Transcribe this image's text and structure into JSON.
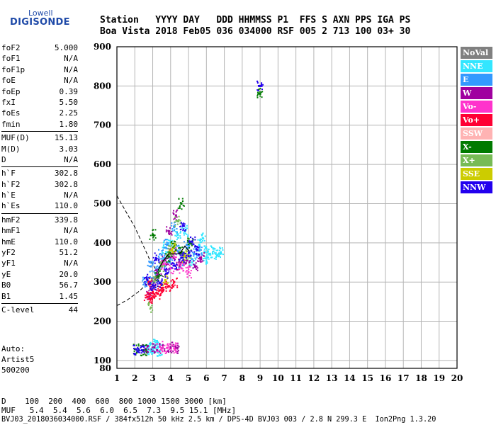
{
  "logo": {
    "line1": "Lowell",
    "line2": "DIGISONDE"
  },
  "header": {
    "labels": "Station   YYYY DAY   DDD HHMMSS P1  FFS S AXN PPS IGA PS",
    "values": "Boa Vista 2018 Feb05 036 034000 RSF 005 2 713 100 03+ 30"
  },
  "params": {
    "group1": [
      {
        "k": "foF2",
        "v": "5.000"
      },
      {
        "k": "foF1",
        "v": "N/A"
      },
      {
        "k": "foF1p",
        "v": "N/A"
      },
      {
        "k": "foE",
        "v": "N/A"
      },
      {
        "k": "foEp",
        "v": "0.39"
      },
      {
        "k": "fxI",
        "v": "5.50"
      },
      {
        "k": "foEs",
        "v": "2.25"
      },
      {
        "k": "fmin",
        "v": "1.80"
      }
    ],
    "group2": [
      {
        "k": "MUF(D)",
        "v": "15.13"
      },
      {
        "k": "M(D)",
        "v": "3.03"
      },
      {
        "k": "D",
        "v": "N/A"
      }
    ],
    "group3": [
      {
        "k": "h`F",
        "v": "302.8"
      },
      {
        "k": "h`F2",
        "v": "302.8"
      },
      {
        "k": "h`E",
        "v": "N/A"
      },
      {
        "k": "h`Es",
        "v": "110.0"
      }
    ],
    "group4": [
      {
        "k": "hmF2",
        "v": "339.8"
      },
      {
        "k": "hmF1",
        "v": "N/A"
      },
      {
        "k": "hmE",
        "v": "110.0"
      },
      {
        "k": "yF2",
        "v": "51.2"
      },
      {
        "k": "yF1",
        "v": "N/A"
      },
      {
        "k": "yE",
        "v": "20.0"
      },
      {
        "k": "B0",
        "v": "56.7"
      },
      {
        "k": "B1",
        "v": "1.45"
      }
    ],
    "group5": [
      {
        "k": "C-level",
        "v": "44"
      }
    ]
  },
  "auto": {
    "line1": "Auto:",
    "line2": "Artist5",
    "line3": "500200"
  },
  "legend": [
    {
      "label": "NoVal",
      "color": "#808080"
    },
    {
      "label": "NNE",
      "color": "#33e6ff"
    },
    {
      "label": "E",
      "color": "#3399ff"
    },
    {
      "label": "W",
      "color": "#a0009f"
    },
    {
      "label": "Vo-",
      "color": "#ff33cc"
    },
    {
      "label": "Vo+",
      "color": "#ff0033"
    },
    {
      "label": "SSW",
      "color": "#ffb3b3"
    },
    {
      "label": "X-",
      "color": "#007a00"
    },
    {
      "label": "X+",
      "color": "#77bb55"
    },
    {
      "label": "SSE",
      "color": "#cccc00"
    },
    {
      "label": "NNW",
      "color": "#2200ee"
    }
  ],
  "footer": {
    "line1": "D    100  200  400  600  800 1000 1500 3000 [km]",
    "line2": "MUF   5.4  5.4  5.6  6.0  6.5  7.3  9.5 15.1 [MHz]",
    "line3": "BVJ03_2018036034000.RSF / 384fx512h 50 kHz 2.5 km / DPS-4D BVJ03 003 / 2.8 N 299.3 E  Ion2Png 1.3.20"
  },
  "chart_data": {
    "type": "scatter",
    "title": "",
    "xlabel": "",
    "ylabel": "",
    "xlim": [
      1,
      20
    ],
    "ylim": [
      80,
      900
    ],
    "xticks": [
      1,
      2,
      3,
      4,
      5,
      6,
      7,
      8,
      9,
      10,
      11,
      12,
      13,
      14,
      15,
      16,
      17,
      18,
      19,
      20
    ],
    "yticks": [
      100,
      200,
      300,
      400,
      500,
      600,
      700,
      800,
      900
    ],
    "ytick_bottom_label": 80,
    "grid": true,
    "series": [
      {
        "name": "NNE",
        "color": "#33e6ff",
        "points": [
          [
            2.9,
            128
          ],
          [
            3.0,
            132
          ],
          [
            2.7,
            130
          ],
          [
            3.2,
            140
          ],
          [
            3.4,
            125
          ],
          [
            3.3,
            135
          ],
          [
            5.9,
            378
          ],
          [
            6.2,
            372
          ],
          [
            6.4,
            385
          ],
          [
            6.6,
            368
          ],
          [
            6.8,
            375
          ],
          [
            6.0,
            360
          ],
          [
            5.6,
            395
          ],
          [
            5.8,
            412
          ],
          [
            4.0,
            400
          ],
          [
            4.4,
            420
          ],
          [
            3.7,
            388
          ],
          [
            5.2,
            350
          ],
          [
            4.8,
            430
          ]
        ]
      },
      {
        "name": "E",
        "color": "#3399ff",
        "points": [
          [
            3.0,
            310
          ],
          [
            3.3,
            330
          ],
          [
            3.6,
            350
          ],
          [
            4.0,
            360
          ],
          [
            4.4,
            380
          ],
          [
            4.9,
            395
          ],
          [
            5.3,
            372
          ],
          [
            3.8,
            395
          ],
          [
            4.2,
            440
          ],
          [
            2.6,
            300
          ],
          [
            2.9,
            340
          ],
          [
            3.5,
            370
          ],
          [
            4.6,
            350
          ],
          [
            5.6,
            380
          ]
        ]
      },
      {
        "name": "W",
        "color": "#a0009f",
        "points": [
          [
            2.6,
            130
          ],
          [
            3.1,
            133
          ],
          [
            3.5,
            131
          ],
          [
            4.0,
            134
          ],
          [
            4.3,
            132
          ],
          [
            3.0,
            290
          ],
          [
            3.3,
            320
          ],
          [
            3.7,
            355
          ],
          [
            4.1,
            372
          ],
          [
            4.5,
            345
          ],
          [
            4.9,
            355
          ],
          [
            5.4,
            340
          ],
          [
            5.7,
            362
          ],
          [
            3.9,
            430
          ],
          [
            4.3,
            470
          ],
          [
            2.8,
            270
          ]
        ]
      },
      {
        "name": "Vo-",
        "color": "#ff33cc",
        "points": [
          [
            3.4,
            135
          ],
          [
            3.8,
            132
          ],
          [
            4.2,
            131
          ],
          [
            3.6,
            345
          ],
          [
            4.0,
            335
          ],
          [
            4.6,
            335
          ],
          [
            5.0,
            325
          ],
          [
            4.2,
            375
          ]
        ]
      },
      {
        "name": "Vo+",
        "color": "#ff0033",
        "points": [
          [
            2.7,
            262
          ],
          [
            2.9,
            258
          ],
          [
            3.1,
            268
          ],
          [
            3.3,
            270
          ],
          [
            3.6,
            280
          ],
          [
            3.9,
            290
          ],
          [
            4.2,
            300
          ],
          [
            3.0,
            275
          ],
          [
            3.5,
            285
          ],
          [
            2.8,
            300
          ]
        ]
      },
      {
        "name": "X-",
        "color": "#007a00",
        "points": [
          [
            2.1,
            128
          ],
          [
            2.5,
            126
          ],
          [
            3.3,
            315
          ],
          [
            3.9,
            365
          ],
          [
            4.2,
            390
          ],
          [
            4.6,
            375
          ],
          [
            5.1,
            400
          ],
          [
            9.0,
            780
          ],
          [
            3.0,
            420
          ],
          [
            4.6,
            500
          ]
        ]
      },
      {
        "name": "X+",
        "color": "#77bb55",
        "points": [
          [
            3.1,
            300
          ],
          [
            3.5,
            340
          ],
          [
            4.0,
            380
          ],
          [
            5.0,
            370
          ],
          [
            4.4,
            455
          ],
          [
            2.9,
            235
          ]
        ]
      },
      {
        "name": "SSE",
        "color": "#cccc00",
        "points": [
          [
            3.7,
            305
          ],
          [
            4.1,
            385
          ],
          [
            4.8,
            365
          ]
        ]
      },
      {
        "name": "NNW",
        "color": "#2200ee",
        "points": [
          [
            2.1,
            128
          ],
          [
            2.4,
            126
          ],
          [
            2.7,
            305
          ],
          [
            3.0,
            292
          ],
          [
            3.4,
            298
          ],
          [
            3.8,
            322
          ],
          [
            4.2,
            342
          ],
          [
            4.6,
            362
          ],
          [
            5.0,
            366
          ],
          [
            5.5,
            382
          ],
          [
            5.2,
            403
          ],
          [
            4.7,
            443
          ],
          [
            3.2,
            360
          ],
          [
            9.0,
            800
          ]
        ]
      }
    ],
    "profile_curve": [
      [
        3.3,
        330
      ],
      [
        3.6,
        355
      ],
      [
        3.9,
        372
      ],
      [
        4.2,
        372
      ],
      [
        4.5,
        372
      ],
      [
        4.8,
        392
      ],
      [
        5.0,
        380
      ]
    ],
    "muf_curve": [
      [
        1,
        520
      ],
      [
        1.5,
        480
      ],
      [
        2,
        440
      ],
      [
        2.4,
        400
      ],
      [
        2.8,
        360
      ],
      [
        3.2,
        330
      ],
      [
        3.6,
        313
      ]
    ],
    "muf_curve_lower": [
      [
        1,
        240
      ],
      [
        1.6,
        255
      ],
      [
        2.2,
        275
      ],
      [
        2.8,
        300
      ],
      [
        3.4,
        315
      ]
    ]
  }
}
